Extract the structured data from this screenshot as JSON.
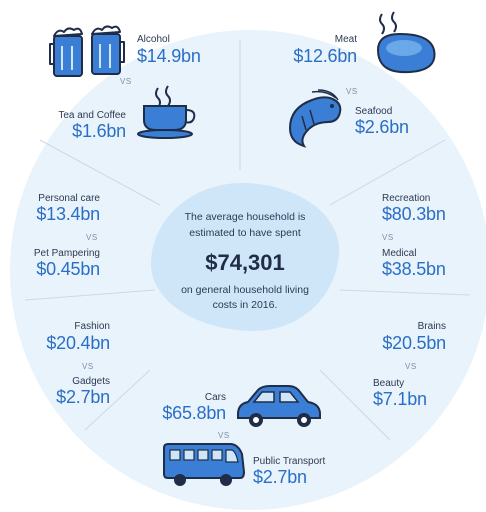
{
  "chart_data": {
    "type": "table",
    "center": {
      "line1": "The average household is",
      "line2": "estimated to have spent",
      "amount": "$74,301",
      "line3": "on general household living",
      "line4": "costs in 2016."
    },
    "vs_label": "VS",
    "pairs": [
      {
        "a": {
          "label": "Alcohol",
          "value": "$14.9bn",
          "value_bn": 14.9
        },
        "b": {
          "label": "Tea and Coffee",
          "value": "$1.6bn",
          "value_bn": 1.6
        }
      },
      {
        "a": {
          "label": "Meat",
          "value": "$12.6bn",
          "value_bn": 12.6
        },
        "b": {
          "label": "Seafood",
          "value": "$2.6bn",
          "value_bn": 2.6
        }
      },
      {
        "a": {
          "label": "Personal care",
          "value": "$13.4bn",
          "value_bn": 13.4
        },
        "b": {
          "label": "Pet Pampering",
          "value": "$0.45bn",
          "value_bn": 0.45
        }
      },
      {
        "a": {
          "label": "Recreation",
          "value": "$80.3bn",
          "value_bn": 80.3
        },
        "b": {
          "label": "Medical",
          "value": "$38.5bn",
          "value_bn": 38.5
        }
      },
      {
        "a": {
          "label": "Fashion",
          "value": "$20.4bn",
          "value_bn": 20.4
        },
        "b": {
          "label": "Gadgets",
          "value": "$2.7bn",
          "value_bn": 2.7
        }
      },
      {
        "a": {
          "label": "Brains",
          "value": "$20.5bn",
          "value_bn": 20.5
        },
        "b": {
          "label": "Beauty",
          "value": "$7.1bn",
          "value_bn": 7.1
        }
      },
      {
        "a": {
          "label": "Cars",
          "value": "$65.8bn",
          "value_bn": 65.8
        },
        "b": {
          "label": "Public Transport",
          "value": "$2.7bn",
          "value_bn": 2.7
        }
      }
    ]
  },
  "colors": {
    "value_blue": "#2a6fc7",
    "circle_bg": "#e9f3fb",
    "center_blob": "#cfe6f8",
    "icon_blue": "#3a7fd5",
    "icon_dark": "#1f2d48"
  }
}
